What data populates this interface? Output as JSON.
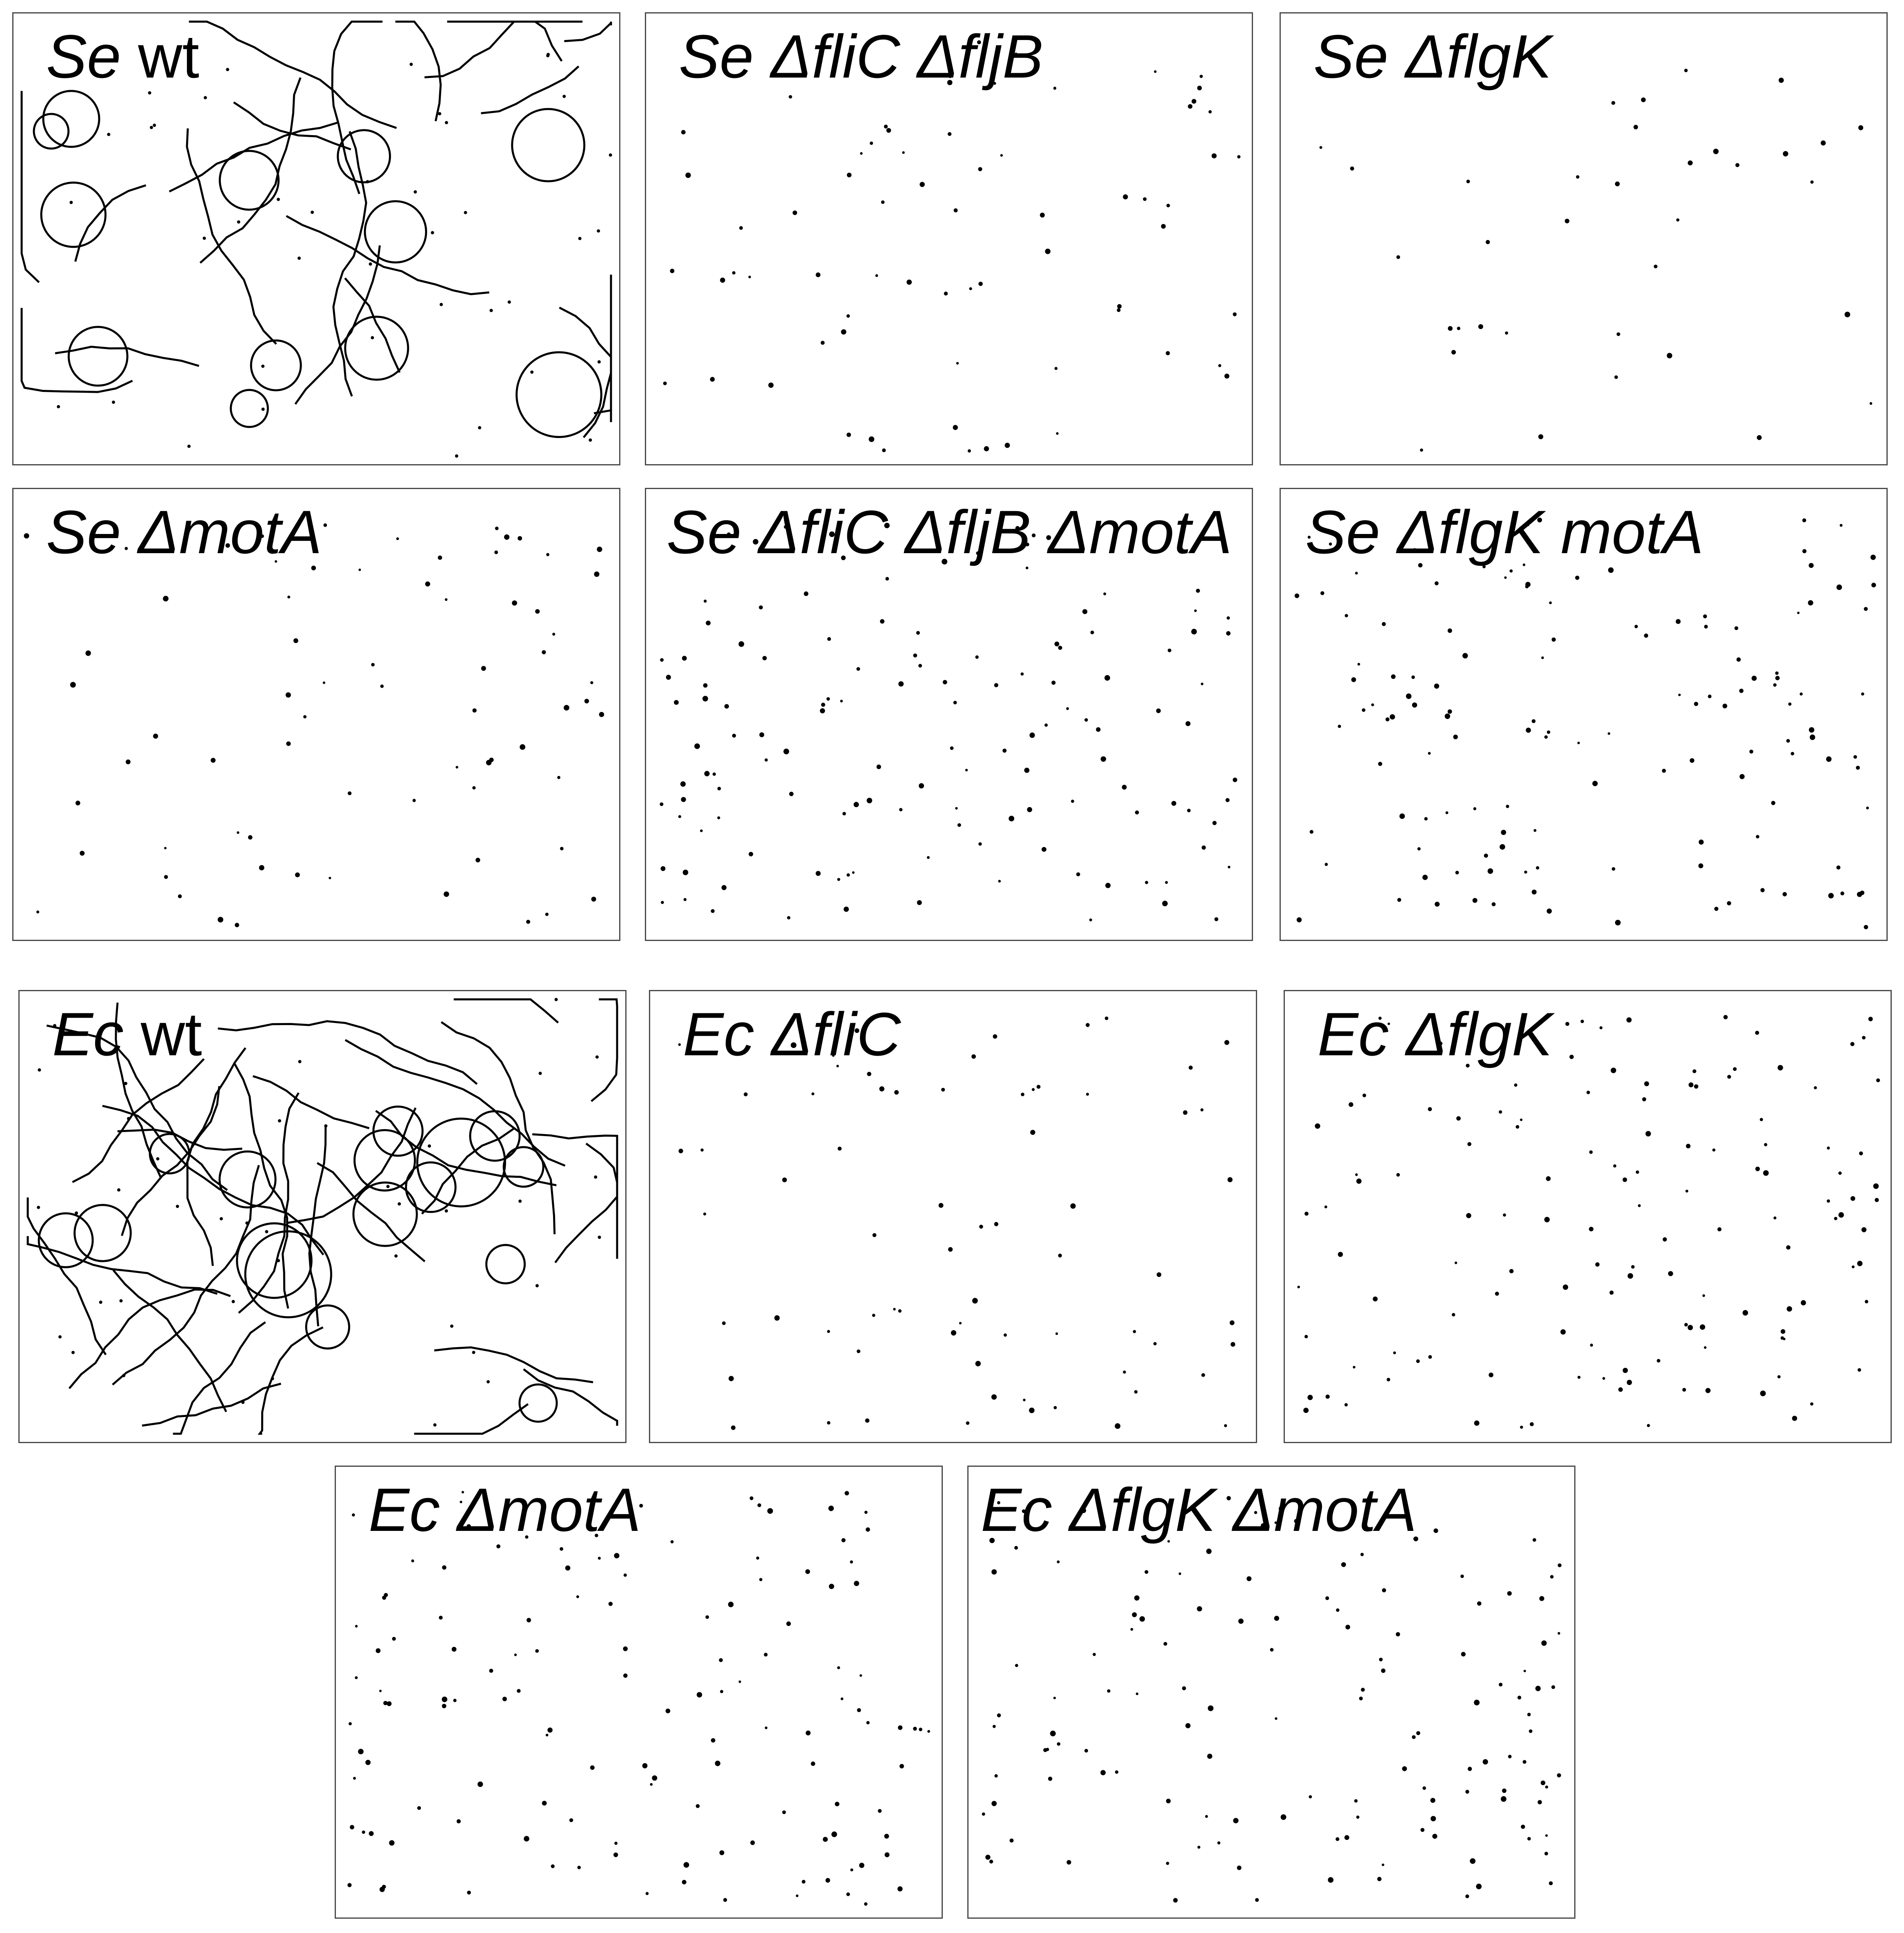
{
  "figure": {
    "panels": [
      {
        "id": "se-wt",
        "species": "Se",
        "genotype": "wt",
        "genotype_italic": false,
        "pattern": "swim"
      },
      {
        "id": "se-flic-fljb",
        "species": "Se",
        "genotype": "ΔfliC ΔfljB",
        "genotype_italic": true,
        "pattern": "sparse"
      },
      {
        "id": "se-flgk",
        "species": "Se",
        "genotype": "ΔflgK",
        "genotype_italic": true,
        "pattern": "very-sparse"
      },
      {
        "id": "se-mota",
        "species": "Se",
        "genotype": "ΔmotA",
        "genotype_italic": true,
        "pattern": "sparse"
      },
      {
        "id": "se-flic-fljb-mota",
        "species": "Se",
        "genotype": "ΔfliC ΔfljB ΔmotA",
        "genotype_italic": true,
        "pattern": "dense"
      },
      {
        "id": "se-flgk-mota",
        "species": "Se",
        "genotype": "ΔflgK motA",
        "genotype_italic": true,
        "pattern": "dense"
      },
      {
        "id": "ec-wt",
        "species": "Ec",
        "genotype": "wt",
        "genotype_italic": false,
        "pattern": "swim-dense"
      },
      {
        "id": "ec-flic",
        "species": "Ec",
        "genotype": "ΔfliC",
        "genotype_italic": true,
        "pattern": "sparse"
      },
      {
        "id": "ec-flgk",
        "species": "Ec",
        "genotype": "ΔflgK",
        "genotype_italic": true,
        "pattern": "dense"
      },
      {
        "id": "ec-mota",
        "species": "Ec",
        "genotype": "ΔmotA",
        "genotype_italic": true,
        "pattern": "dense"
      },
      {
        "id": "ec-flgk-mota",
        "species": "Ec",
        "genotype": "ΔflgK ΔmotA",
        "genotype_italic": true,
        "pattern": "dense"
      }
    ],
    "colors": {
      "trace": "#000000",
      "border": "#4a4a4a",
      "background": "#ffffff"
    }
  }
}
